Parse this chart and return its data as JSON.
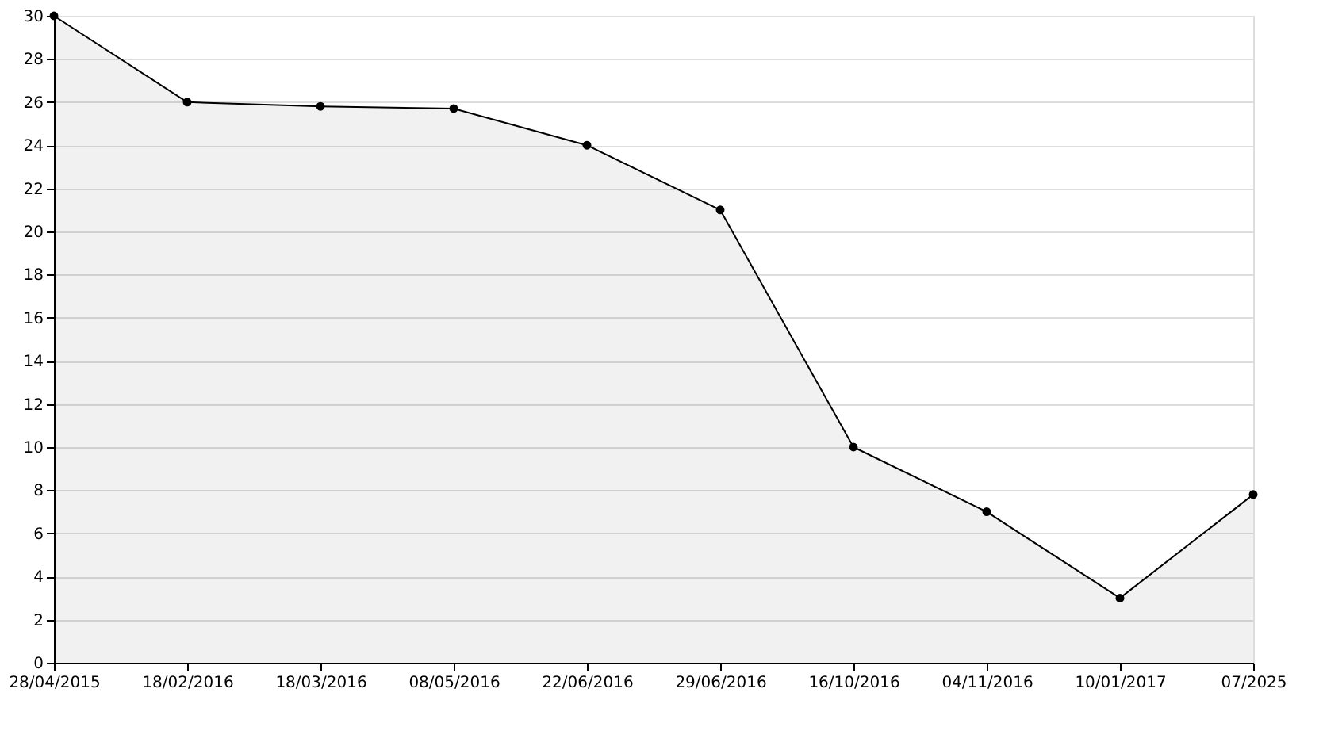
{
  "chart_data": {
    "type": "area",
    "categories": [
      "28/04/2015",
      "18/02/2016",
      "18/03/2016",
      "08/05/2016",
      "22/06/2016",
      "29/06/2016",
      "16/10/2016",
      "04/11/2016",
      "10/01/2017",
      "07/2025"
    ],
    "series": [
      {
        "color": "#000000",
        "values": [
          30,
          26,
          25.8,
          25.7,
          24,
          21,
          10,
          7,
          3,
          7.8
        ]
      }
    ],
    "ylim": [
      0,
      30
    ],
    "yticks": [
      0,
      2,
      4,
      6,
      8,
      10,
      12,
      14,
      16,
      18,
      20,
      22,
      24,
      26,
      28,
      30
    ],
    "grid": "y",
    "marker": "circle",
    "line_style": "solid"
  }
}
